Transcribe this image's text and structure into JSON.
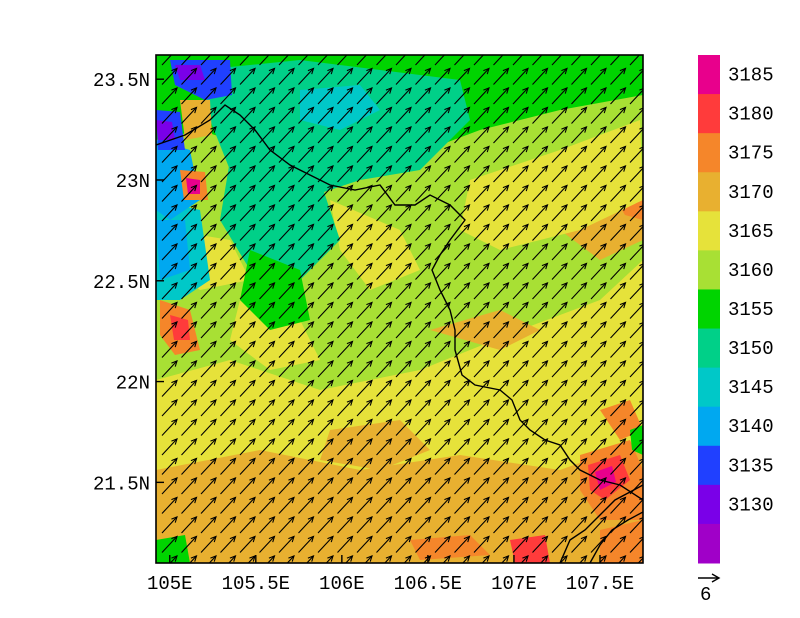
{
  "map": {
    "x_ticks": [
      {
        "value": 105.0,
        "label": "105E"
      },
      {
        "value": 105.5,
        "label": "105.5E"
      },
      {
        "value": 106.0,
        "label": "106E"
      },
      {
        "value": 106.5,
        "label": "106.5E"
      },
      {
        "value": 107.0,
        "label": "107E"
      },
      {
        "value": 107.5,
        "label": "107.5E"
      }
    ],
    "y_ticks": [
      {
        "value": 23.5,
        "label": "23.5N"
      },
      {
        "value": 23.0,
        "label": "23N"
      },
      {
        "value": 22.5,
        "label": "22.5N"
      },
      {
        "value": 22.0,
        "label": "22N"
      },
      {
        "value": 21.5,
        "label": "21.5N"
      }
    ],
    "lon_range": [
      104.92,
      107.75
    ],
    "lat_range": [
      21.1,
      23.62
    ],
    "vector_reference": "6",
    "wind_direction": "south-westerly"
  },
  "colorbar": {
    "labels": [
      "3185",
      "3180",
      "3175",
      "3170",
      "3165",
      "3160",
      "3155",
      "3150",
      "3145",
      "3140",
      "3135",
      "3130"
    ],
    "colors": [
      "#e8008c",
      "#ff3b3b",
      "#f5862a",
      "#e8b030",
      "#e6e23a",
      "#a8e034",
      "#00d400",
      "#00d088",
      "#00c8c8",
      "#00a8f0",
      "#2040ff",
      "#7a00e8",
      "#a000c8"
    ]
  },
  "chart_data": {
    "type": "heatmap",
    "description_fields": {
      "variable_levels": [
        3130,
        3135,
        3140,
        3145,
        3150,
        3155,
        3160,
        3165,
        3170,
        3175,
        3180,
        3185
      ],
      "dominant_level": "3165-3170"
    }
  }
}
